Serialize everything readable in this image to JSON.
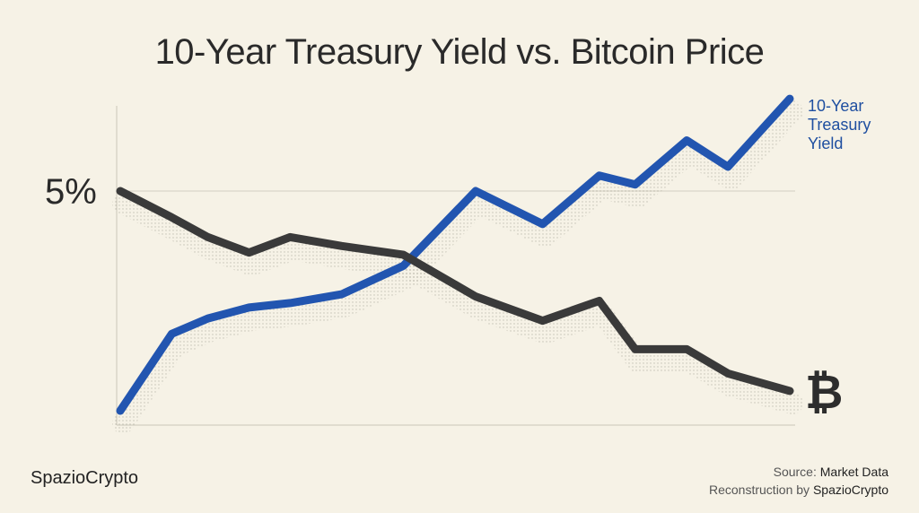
{
  "title": "10-Year Treasury Yield vs. Bitcoin Price",
  "footer": {
    "brand": "SpazioCrypto",
    "source_label": "Source:",
    "source_value": "Market Data",
    "reconstruction_label": "Reconstruction by",
    "reconstruction_value": "SpazioCrypto"
  },
  "chart_data": {
    "type": "line",
    "title": "10-Year Treasury Yield vs. Bitcoin Price",
    "xlabel": "",
    "ylabel": "",
    "y_tick_label": "5%",
    "grid": "single horizontal gridline at 5%",
    "legend_placement": "right, at line ends",
    "series": [
      {
        "name": "10-Year Treasury Yield",
        "color": "#2255b0",
        "values": [
          0.0,
          0.35,
          0.42,
          0.47,
          0.49,
          0.53,
          0.66,
          1.0,
          0.85,
          1.07,
          1.03,
          1.23,
          1.11,
          1.42
        ]
      },
      {
        "name": "",
        "icon": "bitcoin-icon",
        "icon_glyph": "₿",
        "color": "#3a3a3a",
        "values": [
          1.0,
          0.88,
          0.79,
          0.72,
          0.79,
          0.75,
          0.71,
          0.52,
          0.41,
          0.5,
          0.28,
          0.28,
          0.17,
          0.09
        ]
      }
    ],
    "x": [
      0,
      1.0,
      1.7,
      2.5,
      3.3,
      4.3,
      5.5,
      6.9,
      8.2,
      9.3,
      10.0,
      11.0,
      11.8,
      13.0
    ]
  }
}
